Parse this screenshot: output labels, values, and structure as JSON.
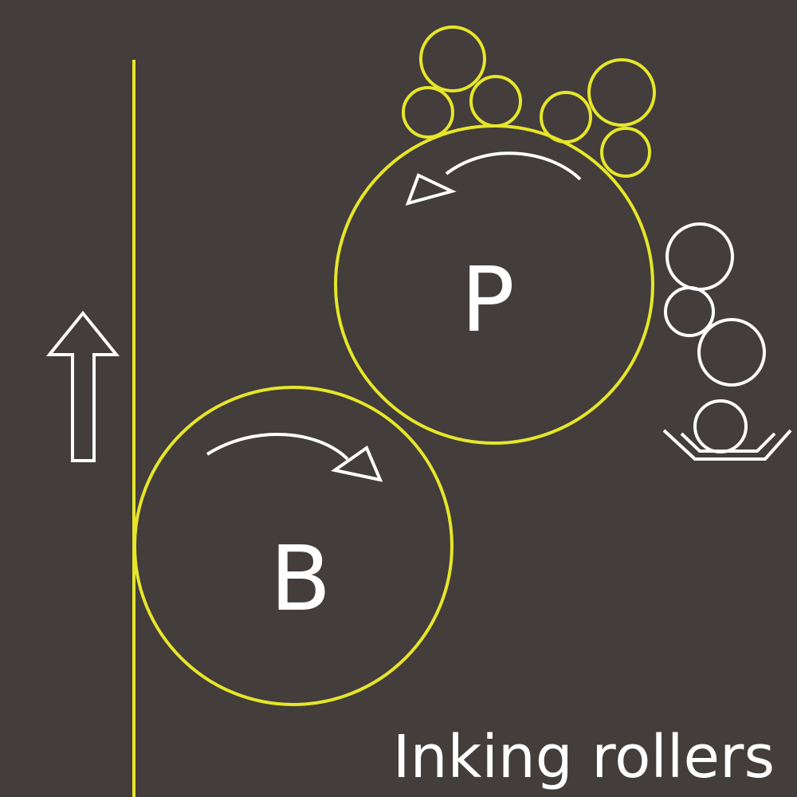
{
  "colors": {
    "background": "#433d3b",
    "ink_train": "#e6e62a",
    "outline": "#ffffff"
  },
  "labels": {
    "plate_cylinder": "P",
    "blanket_cylinder": "B",
    "caption": "Inking rollers"
  },
  "icons": {
    "paper_direction": "arrow-up-icon",
    "plate_rotation": "counterclockwise-arrow-icon",
    "blanket_rotation": "clockwise-arrow-icon",
    "fountain": "ink-fountain-tray-icon"
  }
}
